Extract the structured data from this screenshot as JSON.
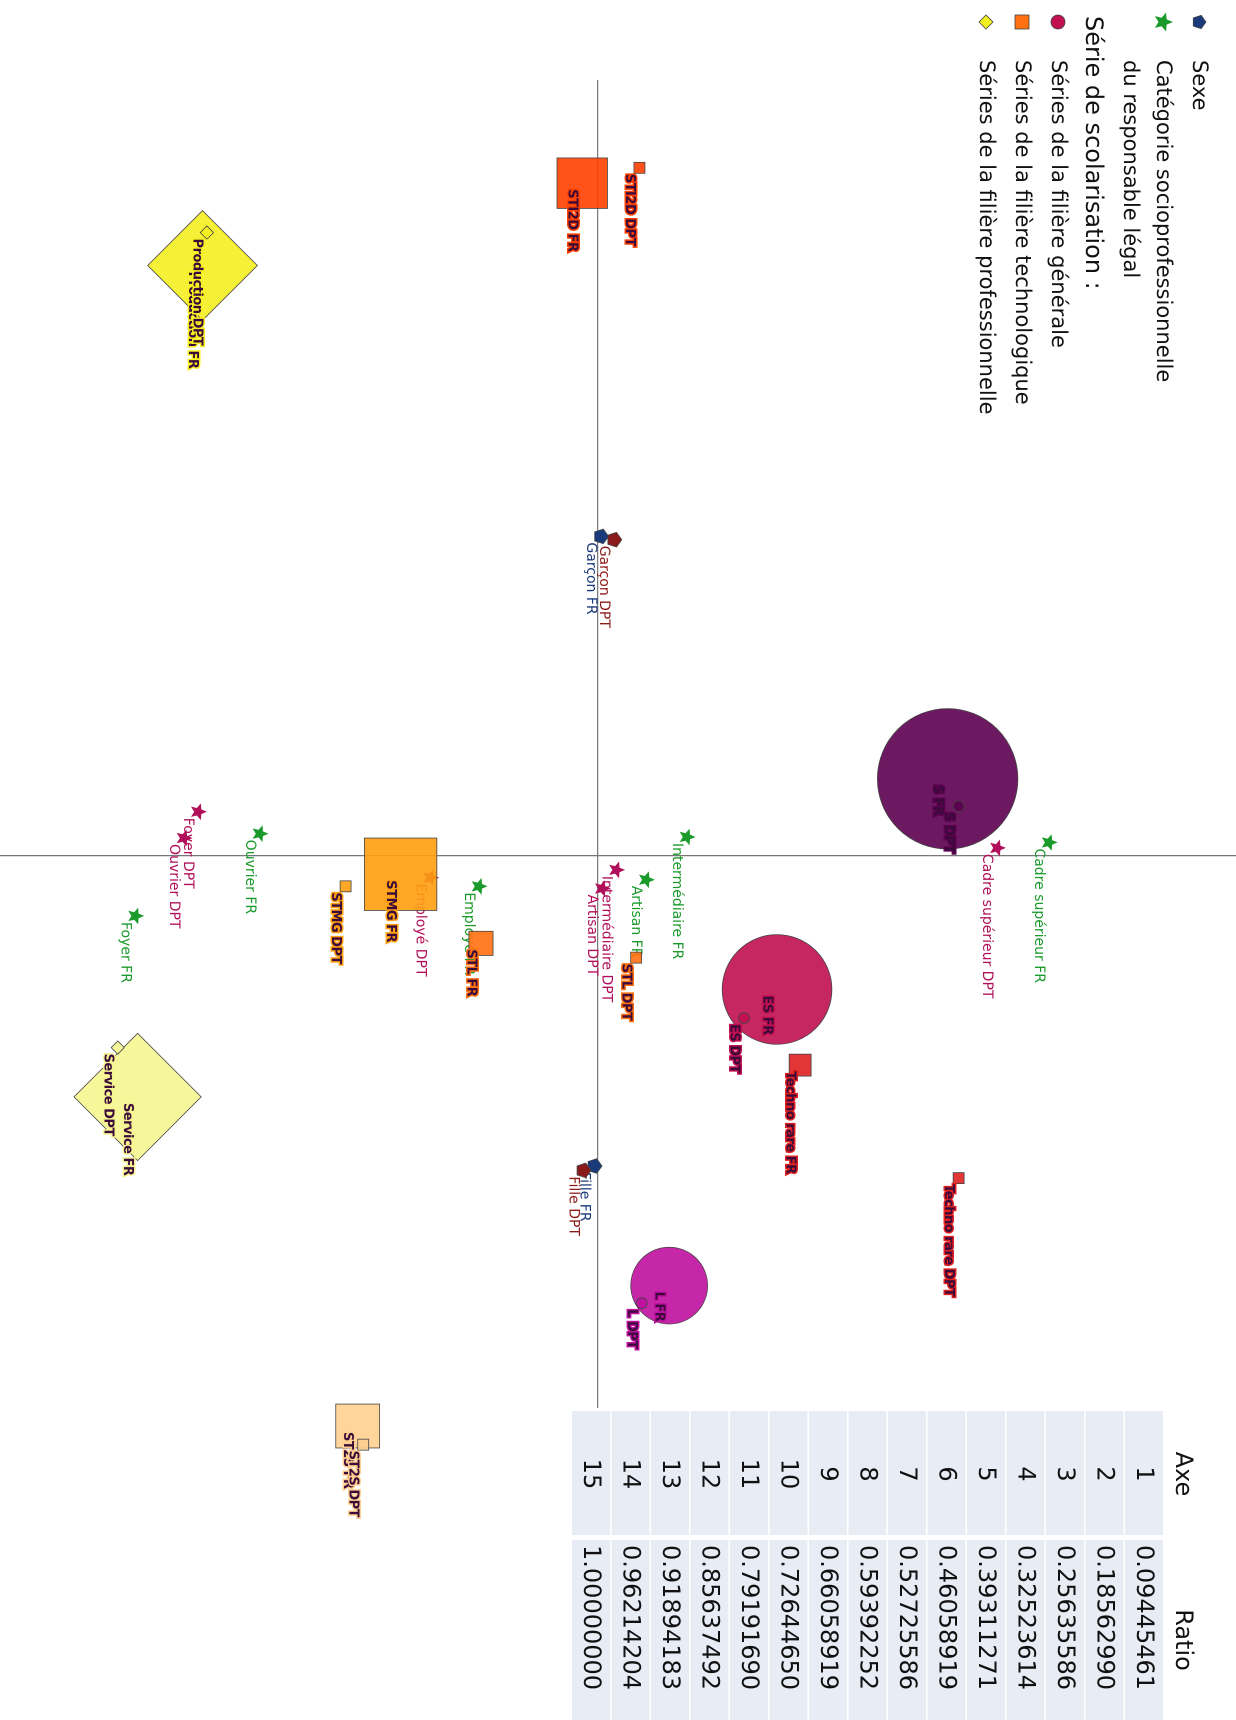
{
  "chart_data": {
    "type": "scatter",
    "xlim": [
      -7.8,
      7.88
    ],
    "ylim": [
      -5.43,
      5.8
    ],
    "legend_heading": "Série de scolarisation :",
    "series": [
      {
        "name": "Sexe",
        "shape": "pentagon",
        "color": "#1a3a7a",
        "labels": [
          "Garçon FR",
          "Garçon DPT",
          "Fille FR",
          "Fille DPT"
        ],
        "x": [
          -2.91,
          -2.88,
          2.83,
          2.87
        ],
        "values": [
          0.03,
          0.15,
          -0.03,
          -0.13
        ],
        "sizes": [
          0.07,
          0.07,
          0.07,
          0.07
        ],
        "colors": [
          "#1a3a7a",
          "#8b1a1a",
          "#1a3a7a",
          "#8b1a1a"
        ]
      },
      {
        "name": [
          "Catégorie socioprofessionnelle",
          "du responsable légal"
        ],
        "shape": "star",
        "color": "#1a9a2a",
        "labels": [
          "Cadre supérieur FR",
          "Cadre supérieur DPT",
          "Intermédiaire FR",
          "Intermédiaire DPT",
          "Artisan FR",
          "Artisan DPT",
          "Employé FR",
          "Employé DPT",
          "Ouvrier FR",
          "Ouvrier DPT",
          "Foyer DPT",
          "Foyer FR"
        ],
        "x": [
          -0.12,
          -0.07,
          -0.17,
          0.13,
          0.22,
          0.3,
          0.28,
          0.2,
          -0.2,
          -0.16,
          -0.4,
          0.55
        ],
        "values": [
          4.1,
          3.63,
          0.81,
          0.17,
          0.44,
          0.04,
          -1.08,
          -1.52,
          -3.07,
          -3.76,
          -3.63,
          -4.2
        ],
        "sizes": [
          0.08,
          0.08,
          0.08,
          0.08,
          0.08,
          0.08,
          0.08,
          0.08,
          0.08,
          0.08,
          0.08,
          0.08
        ],
        "colors": [
          "#1a9a2a",
          "#b0105a",
          "#1a9a2a",
          "#b0105a",
          "#1a9a2a",
          "#b0105a",
          "#1a9a2a",
          "#b0105a",
          "#1a9a2a",
          "#b0105a",
          "#b0105a",
          "#1a9a2a"
        ]
      },
      {
        "name": "Séries de la filière générale",
        "shape": "circle",
        "color": "#c0104f",
        "labels": [
          "S FR",
          "S DPT",
          "ES FR",
          "ES DPT",
          "L FR",
          "L DPT"
        ],
        "x": [
          -0.7,
          -0.45,
          1.22,
          1.48,
          3.92,
          4.08
        ],
        "values": [
          3.18,
          3.28,
          1.63,
          1.33,
          0.65,
          0.4
        ],
        "sizes": [
          0.64,
          0.05,
          0.5,
          0.05,
          0.35,
          0.05
        ],
        "colors": [
          "#5c0050",
          "#5c0050",
          "#c0104f",
          "#c0104f",
          "#c010a0",
          "#c010a0"
        ]
      },
      {
        "name": "Séries de la filière technologique",
        "shape": "square",
        "color": "#ff7010",
        "labels": [
          "STI2D FR",
          "STI2D DPT",
          "STMG FR",
          "STMG DPT",
          "STL FR",
          "STL DPT",
          "Techno rare FR",
          "Techno rare DPT",
          "ST2S FR",
          "ST2S DPT"
        ],
        "x": [
          -6.13,
          -6.27,
          0.17,
          0.28,
          0.8,
          0.93,
          1.91,
          2.94,
          5.2,
          5.37
        ],
        "values": [
          -0.14,
          0.38,
          -1.79,
          -2.29,
          -1.06,
          0.35,
          1.84,
          3.28,
          -2.18,
          -2.13
        ],
        "sizes": [
          0.23,
          0.05,
          0.33,
          0.05,
          0.11,
          0.05,
          0.1,
          0.05,
          0.2,
          0.05
        ],
        "colors": [
          "#ff4000",
          "#ff4000",
          "#ff9f10",
          "#ff9f10",
          "#ff7010",
          "#ff7010",
          "#e02020",
          "#e02020",
          "#ffd090",
          "#ffd090"
        ]
      },
      {
        "name": "Séries de la filière professionnelle",
        "shape": "diamond",
        "color": "#f5f020",
        "labels": [
          "Production FR",
          "Production DPT",
          "Service FR",
          "Service DPT"
        ],
        "x": [
          -5.38,
          -5.68,
          2.2,
          1.75
        ],
        "values": [
          -3.59,
          -3.55,
          -4.18,
          -4.36
        ],
        "sizes": [
          0.5,
          0.06,
          0.58,
          0.06
        ],
        "colors": [
          "#f5f020",
          "#f5f020",
          "#f5f590",
          "#f5f590"
        ]
      }
    ]
  },
  "table": {
    "columns": [
      "Axe",
      "Ratio"
    ],
    "rows": [
      [
        "1",
        "0.09445461"
      ],
      [
        "2",
        "0.18562990"
      ],
      [
        "3",
        "0.25635586"
      ],
      [
        "4",
        "0.32523614"
      ],
      [
        "5",
        "0.39311271"
      ],
      [
        "6",
        "0.46058919"
      ],
      [
        "7",
        "0.52725586"
      ],
      [
        "8",
        "0.59392252"
      ],
      [
        "9",
        "0.66058919"
      ],
      [
        "10",
        "0.72644650"
      ],
      [
        "11",
        "0.79191690"
      ],
      [
        "12",
        "0.85637492"
      ],
      [
        "13",
        "0.91894183"
      ],
      [
        "14",
        "0.96214204"
      ],
      [
        "15",
        "1.00000000"
      ]
    ]
  }
}
